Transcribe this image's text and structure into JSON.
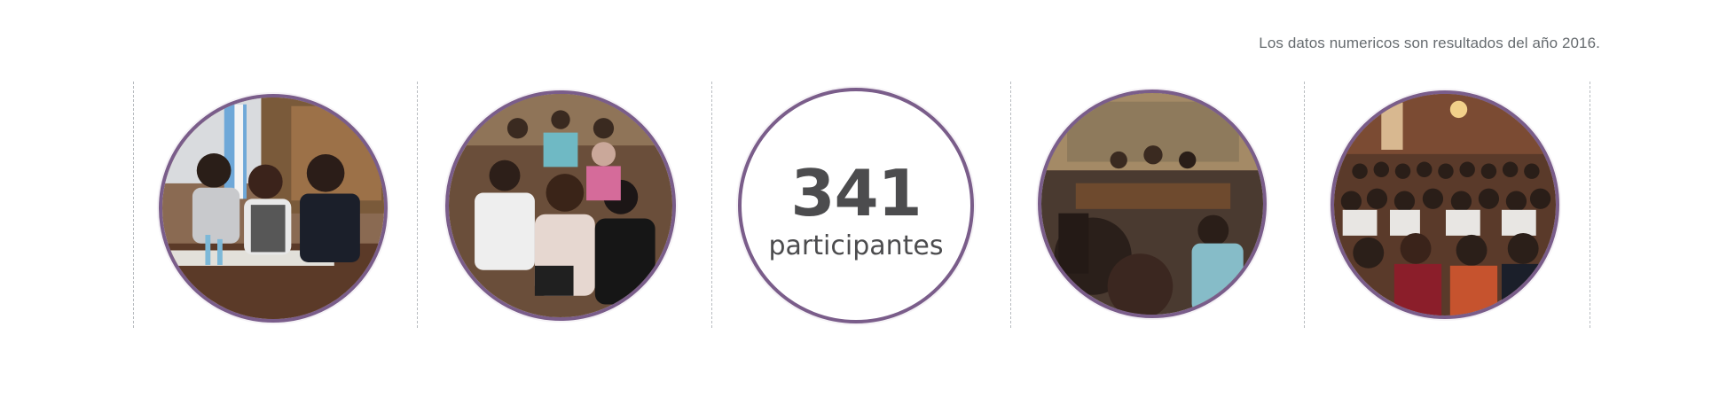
{
  "note": "Los datos numericos son resultados del año 2016.",
  "colors": {
    "ring": "#7a5d8a",
    "text": "#4c4c4e",
    "note": "#666b6f",
    "divider": "#b8bcc0"
  },
  "stat": {
    "number": "341",
    "label": "participantes"
  },
  "photos": [
    {
      "icon": "panel-speakers-photo"
    },
    {
      "icon": "audience-seated-photo"
    },
    {
      "icon": "panel-session-photo"
    },
    {
      "icon": "crowd-audience-photo"
    }
  ]
}
